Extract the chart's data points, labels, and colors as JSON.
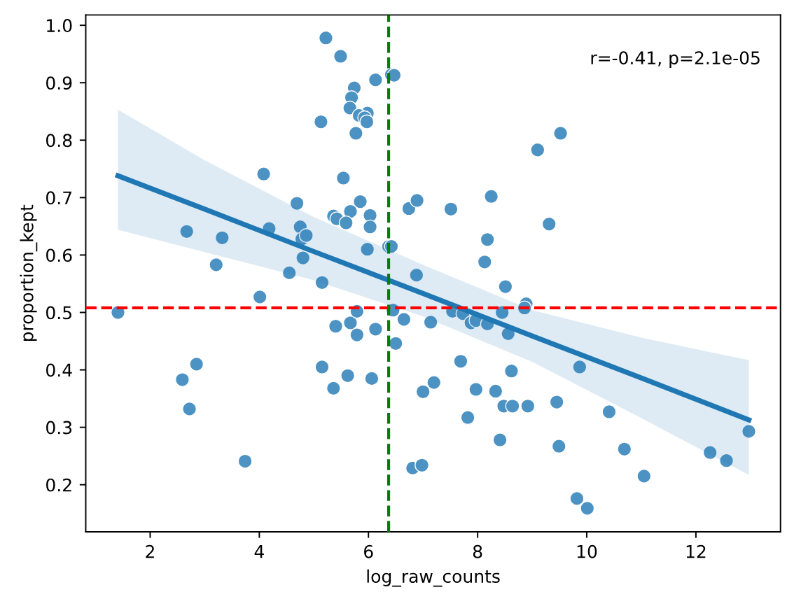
{
  "chart_data": {
    "type": "scatter",
    "xlabel": "log_raw_counts",
    "ylabel": "proportion_kept",
    "annotations": [
      "r=-0.41, p=2.1e-05"
    ],
    "xlim": [
      0.82,
      13.55
    ],
    "ylim": [
      0.118,
      1.018
    ],
    "xticks": [
      2,
      4,
      6,
      8,
      10,
      12
    ],
    "yticks": [
      0.2,
      0.3,
      0.4,
      0.5,
      0.6,
      0.7,
      0.8,
      0.9,
      {
        "value": 1.0,
        "label": "1.0"
      }
    ],
    "series": [
      {
        "color": "#4c92c3",
        "marker": "circle",
        "x": [
          5.22,
          5.49,
          6.42,
          6.47,
          6.13,
          5.74,
          5.69,
          5.66,
          5.98,
          5.83,
          5.93,
          5.97,
          5.13,
          5.77,
          4.08,
          5.54,
          4.69,
          5.85,
          5.36,
          5.42,
          5.67,
          5.59,
          6.03,
          6.03,
          2.67,
          3.32,
          4.18,
          4.75,
          4.78,
          4.86,
          4.8,
          5.98,
          6.37,
          6.42,
          3.21,
          4.55,
          5.15,
          4.01,
          6.88,
          6.74,
          6.89,
          9.52,
          9.1,
          8.25,
          7.51,
          9.31,
          8.18,
          8.13,
          8.51,
          8.89,
          8.86,
          1.41,
          2.59,
          2.85,
          2.72,
          3.74,
          5.15,
          5.36,
          5.4,
          5.67,
          5.79,
          5.79,
          5.62,
          6.06,
          6.13,
          6.45,
          6.5,
          6.65,
          7.0,
          6.81,
          6.98,
          7.14,
          7.2,
          7.54,
          7.73,
          7.69,
          7.88,
          7.97,
          8.18,
          7.97,
          7.82,
          8.33,
          8.45,
          8.56,
          8.62,
          8.48,
          8.64,
          8.92,
          8.41,
          9.45,
          9.49,
          9.87,
          9.82,
          10.01,
          10.41,
          10.69,
          11.05,
          12.26,
          12.56,
          12.97
        ],
        "values": [
          0.978,
          0.946,
          0.914,
          0.913,
          0.905,
          0.891,
          0.874,
          0.856,
          0.847,
          0.843,
          0.839,
          0.832,
          0.832,
          0.812,
          0.741,
          0.734,
          0.69,
          0.693,
          0.668,
          0.663,
          0.676,
          0.656,
          0.669,
          0.649,
          0.641,
          0.63,
          0.646,
          0.649,
          0.628,
          0.634,
          0.595,
          0.61,
          0.615,
          0.615,
          0.583,
          0.569,
          0.552,
          0.527,
          0.565,
          0.681,
          0.695,
          0.812,
          0.783,
          0.702,
          0.68,
          0.654,
          0.627,
          0.588,
          0.545,
          0.515,
          0.508,
          0.5,
          0.383,
          0.41,
          0.332,
          0.241,
          0.405,
          0.368,
          0.476,
          0.482,
          0.502,
          0.461,
          0.39,
          0.385,
          0.471,
          0.504,
          0.446,
          0.488,
          0.362,
          0.229,
          0.234,
          0.483,
          0.378,
          0.502,
          0.498,
          0.415,
          0.482,
          0.486,
          0.48,
          0.366,
          0.317,
          0.363,
          0.5,
          0.463,
          0.398,
          0.337,
          0.337,
          0.337,
          0.278,
          0.344,
          0.267,
          0.405,
          0.176,
          0.159,
          0.327,
          0.262,
          0.215,
          0.256,
          0.242,
          0.293
        ]
      },
      {
        "type": "line",
        "color": "#1f77b4",
        "x": [
          1.41,
          3,
          5,
          7,
          9,
          11,
          12.97
        ],
        "values": [
          0.738,
          0.68,
          0.606,
          0.533,
          0.459,
          0.386,
          0.313
        ],
        "lower": [
          0.644,
          0.605,
          0.556,
          0.493,
          0.414,
          0.316,
          0.217
        ],
        "upper": [
          0.853,
          0.765,
          0.666,
          0.583,
          0.504,
          0.456,
          0.417
        ]
      }
    ],
    "ref_lines": [
      {
        "axis": "y",
        "value": 0.508,
        "color": "#ff0000",
        "line_style": "dashed"
      },
      {
        "axis": "x",
        "value": 6.37,
        "color": "#008000",
        "line_style": "dashed"
      }
    ]
  }
}
